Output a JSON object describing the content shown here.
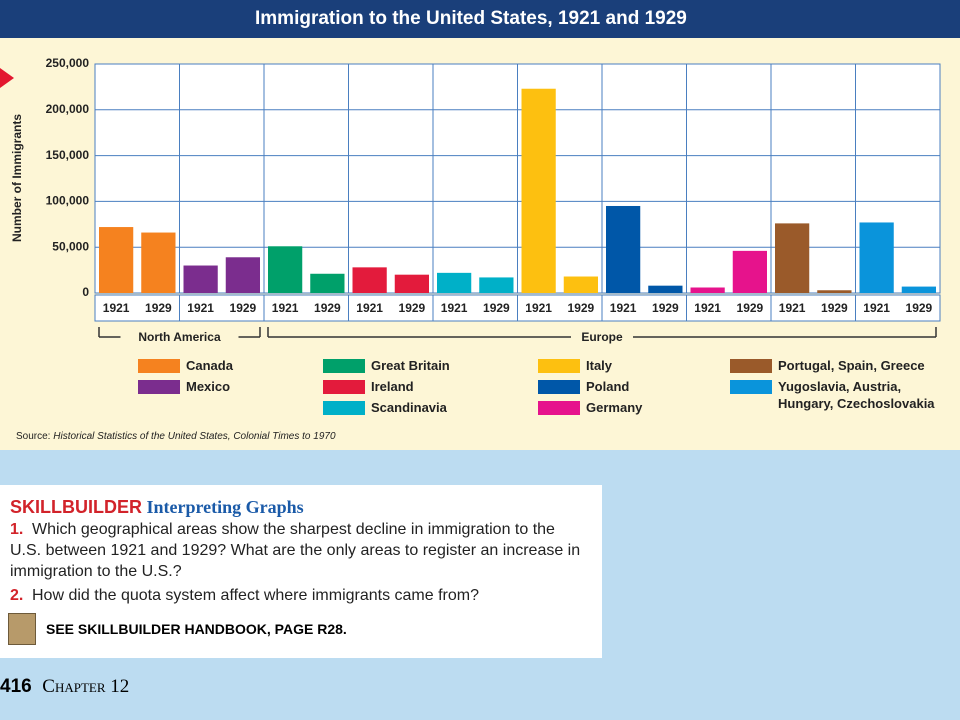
{
  "chart_data": {
    "type": "bar",
    "title": "Immigration to the United States, 1921 and 1929",
    "ylabel": "Number of Immigrants",
    "ylim": [
      0,
      250000
    ],
    "yticks": [
      0,
      {
        "value": 50000,
        "label": "50,000"
      },
      {
        "value": 100000,
        "label": "100,000"
      },
      {
        "value": 150000,
        "label": "150,000"
      },
      {
        "value": 200000,
        "label": "200,000"
      },
      {
        "value": 250000,
        "label": "250,000"
      }
    ],
    "grid": true,
    "categories": [
      "1921",
      "1929"
    ],
    "regions": [
      {
        "name": "North America",
        "series": [
          {
            "name": "Canada",
            "color": "#f5821f",
            "values": [
              72000,
              66000
            ]
          },
          {
            "name": "Mexico",
            "color": "#7b2d8e",
            "values": [
              30000,
              39000
            ]
          }
        ]
      },
      {
        "name": "Europe",
        "series": [
          {
            "name": "Great Britain",
            "color": "#00a06a",
            "values": [
              51000,
              21000
            ]
          },
          {
            "name": "Ireland",
            "color": "#e31b3c",
            "values": [
              28000,
              20000
            ]
          },
          {
            "name": "Scandinavia",
            "color": "#00b0c8",
            "values": [
              22000,
              17000
            ]
          },
          {
            "name": "Italy",
            "color": "#fdc010",
            "values": [
              223000,
              18000
            ]
          },
          {
            "name": "Poland",
            "color": "#0057a8",
            "values": [
              95000,
              8000
            ]
          },
          {
            "name": "Germany",
            "color": "#e6138c",
            "values": [
              6000,
              46000
            ]
          },
          {
            "name": "Portugal, Spain, Greece",
            "color": "#9a5a2a",
            "values": [
              76000,
              3000
            ]
          },
          {
            "name": "Yugoslavia, Austria, Hungary, Czechoslovakia",
            "color": "#0a94db",
            "values": [
              77000,
              7000
            ]
          }
        ]
      }
    ],
    "source_label": "Source:",
    "source": "Historical Statistics of the United States, Colonial Times to 1970"
  },
  "skillbuilder": {
    "heading": "SKILLBUILDER",
    "subheading": "Interpreting Graphs",
    "questions": [
      {
        "number": "1.",
        "text": "Which geographical areas show the sharpest decline in immigration to the U.S. between 1921 and 1929? What are the only areas to register an increase in immigration to the U.S.?"
      },
      {
        "number": "2.",
        "text": "How did the quota system affect where immigrants came from?"
      }
    ],
    "handbook": "SEE SKILLBUILDER HANDBOOK, PAGE R28."
  },
  "footer": {
    "page": "416",
    "chapter": "Chapter 12"
  }
}
